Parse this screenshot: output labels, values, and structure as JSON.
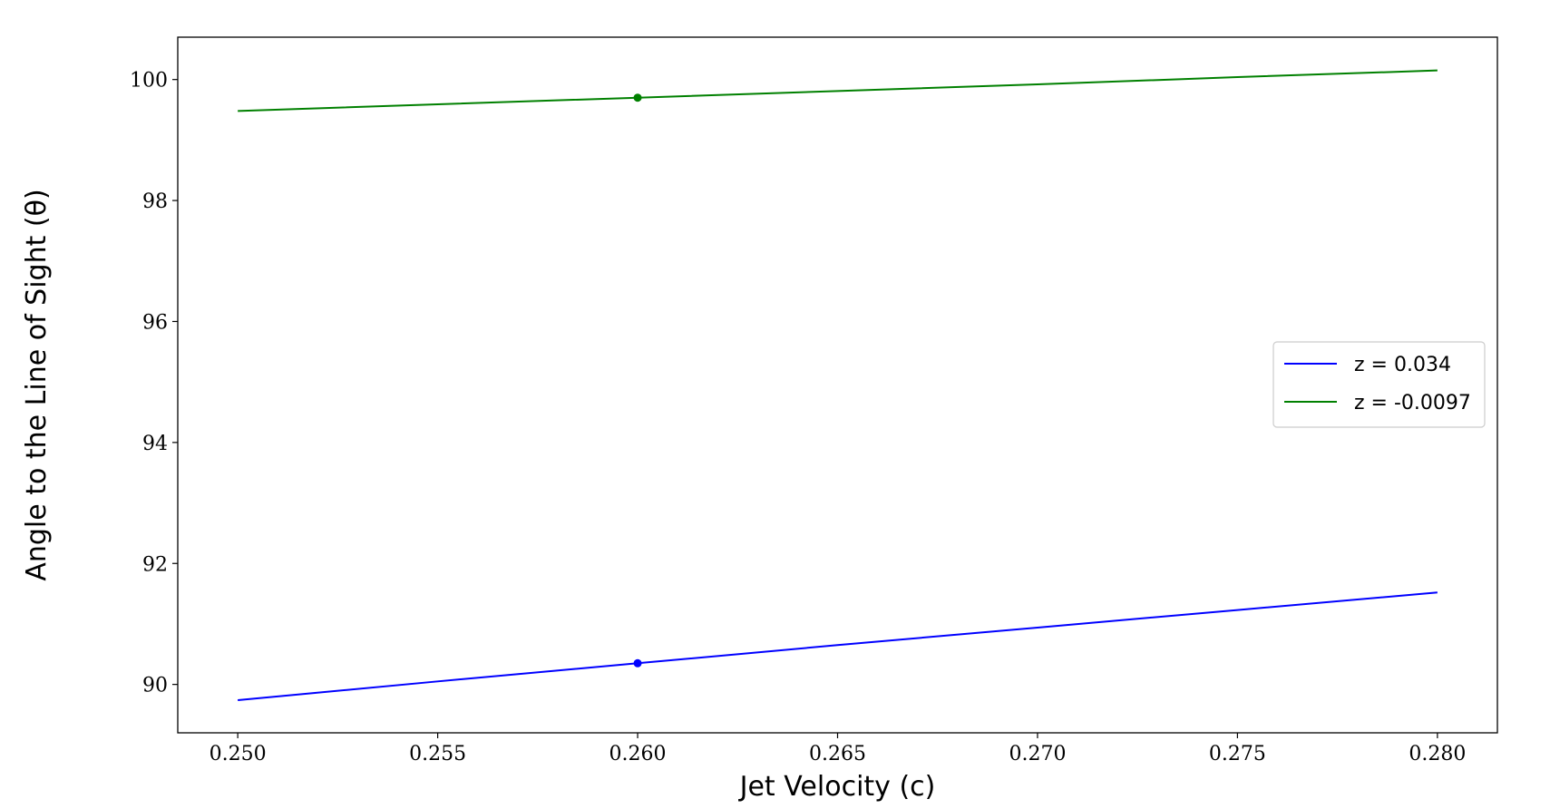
{
  "chart_data": {
    "type": "line",
    "xlabel": "Jet Velocity (c)",
    "ylabel": "Angle to the Line of Sight (θ)",
    "xlim": [
      0.2485,
      0.2815
    ],
    "ylim": [
      89.2,
      100.7
    ],
    "x_ticks": [
      "0.250",
      "0.255",
      "0.260",
      "0.265",
      "0.270",
      "0.275",
      "0.280"
    ],
    "y_ticks": [
      "90",
      "92",
      "94",
      "96",
      "98",
      "100"
    ],
    "grid": false,
    "legend_position": "right",
    "series": [
      {
        "name": "z = 0.034",
        "color": "#0000ff",
        "x": [
          0.25,
          0.255,
          0.26,
          0.265,
          0.27,
          0.275,
          0.28
        ],
        "y": [
          89.74,
          90.05,
          90.35,
          90.65,
          90.94,
          91.23,
          91.52
        ],
        "marker": {
          "x": 0.26,
          "y": 90.35
        }
      },
      {
        "name": "z = -0.0097",
        "color": "#008000",
        "x": [
          0.25,
          0.255,
          0.26,
          0.265,
          0.27,
          0.275,
          0.28
        ],
        "y": [
          99.48,
          99.59,
          99.7,
          99.81,
          99.92,
          100.04,
          100.15
        ],
        "marker": {
          "x": 0.26,
          "y": 99.7
        }
      }
    ]
  }
}
